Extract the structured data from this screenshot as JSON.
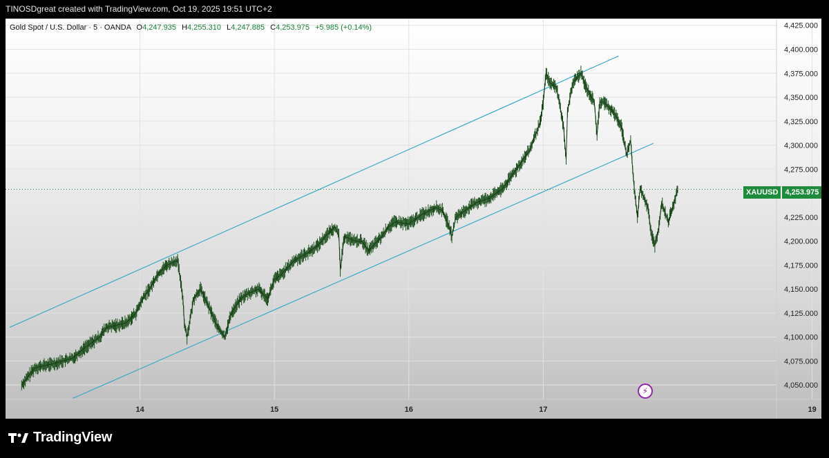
{
  "caption": "TINOSDgreat created with TradingView.com, Oct 19, 2025 19:51 UTC+2",
  "legend": {
    "symbol": "Gold Spot / U.S. Dollar · 5 · OANDA",
    "open_label": "O",
    "open": "4,247.935",
    "high_label": "H",
    "high": "4,255.310",
    "low_label": "L",
    "low": "4,247.885",
    "close_label": "C",
    "close": "4,253.975",
    "change": "+5.985 (+0.14%)"
  },
  "price_tag": {
    "symbol": "XAUUSD",
    "price": "4,253.975"
  },
  "footer": {
    "brand": "TradingView"
  },
  "colors": {
    "candle": "#1a4d1a",
    "channel": "#3aa8c8",
    "last_price": "#1e8a3c",
    "alert": "#8e24aa"
  },
  "icons": {
    "alert": "lightning-bolt-icon",
    "logo": "tradingview-logo-icon"
  },
  "chart_data": {
    "type": "line",
    "title": "Gold Spot / U.S. Dollar · 5 · OANDA",
    "x_ticks": [
      "14",
      "15",
      "16",
      "17",
      "19"
    ],
    "y_ticks": [
      4050,
      4075,
      4100,
      4125,
      4150,
      4175,
      4200,
      4225,
      4250,
      4275,
      4300,
      4325,
      4350,
      4375,
      4400,
      4425
    ],
    "y_tick_labels": [
      "4,050.000",
      "4,075.000",
      "4,100.000",
      "4,125.000",
      "4,150.000",
      "4,175.000",
      "4,200.000",
      "4,225.000",
      "4,250.000",
      "4,275.000",
      "4,300.000",
      "4,325.000",
      "4,350.000",
      "4,375.000",
      "4,400.000",
      "4,425.000"
    ],
    "ylim": [
      4035,
      4432
    ],
    "xlim": [
      13.1,
      19.0
    ],
    "grid": true,
    "series": [
      {
        "x": [
          13.12,
          13.22,
          13.35,
          13.5,
          13.6,
          13.7,
          13.75,
          13.82,
          13.9,
          13.97,
          14.02,
          14.08,
          14.13,
          14.2,
          14.28,
          14.32,
          14.33,
          14.35,
          14.4,
          14.45,
          14.5,
          14.58,
          14.63,
          14.68,
          14.75,
          14.8,
          14.88,
          14.95,
          15.0,
          15.05,
          15.15,
          15.25,
          15.32,
          15.38,
          15.45,
          15.48,
          15.49,
          15.52,
          15.6,
          15.65,
          15.7,
          15.8,
          15.85,
          15.9,
          16.0,
          16.1,
          16.2,
          16.25,
          16.3,
          16.32,
          16.35,
          16.5,
          16.6,
          16.7,
          16.8,
          16.9,
          16.98,
          17.0,
          17.02,
          17.05,
          17.1,
          17.15,
          17.17,
          17.18,
          17.22,
          17.28,
          17.32,
          17.38,
          17.4,
          17.42,
          17.45,
          17.52,
          17.58,
          17.6,
          17.62,
          17.65,
          17.67,
          17.7,
          17.72,
          17.78,
          17.8,
          17.83,
          17.86,
          17.88,
          17.93,
          18.0
        ],
        "y": [
          4050,
          4068,
          4072,
          4078,
          4090,
          4100,
          4110,
          4112,
          4115,
          4125,
          4140,
          4152,
          4165,
          4175,
          4180,
          4140,
          4115,
          4100,
          4140,
          4150,
          4135,
          4110,
          4100,
          4125,
          4140,
          4145,
          4150,
          4140,
          4160,
          4165,
          4180,
          4188,
          4195,
          4205,
          4215,
          4205,
          4170,
          4205,
          4200,
          4200,
          4190,
          4205,
          4215,
          4220,
          4218,
          4228,
          4235,
          4232,
          4215,
          4205,
          4225,
          4240,
          4245,
          4255,
          4275,
          4295,
          4325,
          4345,
          4375,
          4365,
          4360,
          4320,
          4285,
          4335,
          4365,
          4375,
          4360,
          4345,
          4310,
          4345,
          4345,
          4335,
          4320,
          4305,
          4290,
          4305,
          4265,
          4225,
          4255,
          4235,
          4210,
          4195,
          4215,
          4240,
          4220,
          4253.975
        ]
      }
    ],
    "last_price": 4253.975
  }
}
